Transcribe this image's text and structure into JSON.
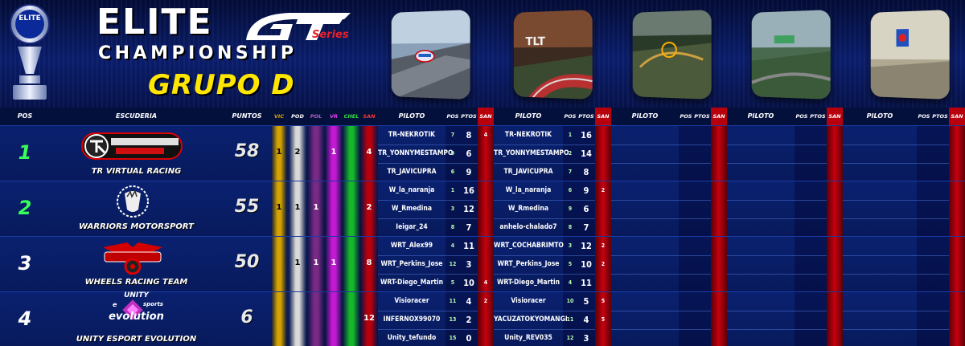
{
  "header": {
    "elite": "ELITE",
    "gt": "GT",
    "series": "Series",
    "championship": "CHAMPIONSHIP",
    "group": "GRUPO D",
    "trophy_badge": "ELITE"
  },
  "columns": {
    "pos": "POS",
    "team": "ESCUDERIA",
    "points": "PUNTOS",
    "stats": [
      "VIC",
      "POD",
      "POL",
      "VR",
      "CHEL",
      "SAN"
    ],
    "piloto": "PILOTO",
    "dpos": "POS",
    "dpts": "PTOS",
    "dsan": "SAN"
  },
  "colors": {
    "vic": "#d4a300",
    "pod": "#d9d9d9",
    "pol": "#7a2a86",
    "vr": "#c418d2",
    "chel": "#16b82a",
    "san": "#b8000c"
  },
  "teams": [
    {
      "pos": "1",
      "pos_color": "#39ff5a",
      "name": "TR VIRTUAL RACING",
      "points": "58",
      "stats": [
        "1",
        "2",
        "",
        "1",
        "",
        "4"
      ],
      "logo": "tr-virtual-racing-logo",
      "drivers": [
        {
          "r1": {
            "name": "TR-NEKROTIK",
            "pos": "7",
            "pts": "8",
            "san": "4"
          },
          "r2": {
            "name": "TR-NEKROTIK",
            "pos": "1",
            "pts": "16",
            "san": ""
          }
        },
        {
          "r1": {
            "name": "TR_YONNYMESTAMPO",
            "pos": "9",
            "pts": "6",
            "san": ""
          },
          "r2": {
            "name": "TR_YONNYMESTAMPO",
            "pos": "2",
            "pts": "14",
            "san": ""
          }
        },
        {
          "r1": {
            "name": "TR_JAVICUPRA",
            "pos": "6",
            "pts": "9",
            "san": ""
          },
          "r2": {
            "name": "TR_JAVICUPRA",
            "pos": "7",
            "pts": "8",
            "san": ""
          }
        }
      ]
    },
    {
      "pos": "2",
      "pos_color": "#39ff5a",
      "name": "WARRIORS MOTORSPORT",
      "points": "55",
      "stats": [
        "1",
        "1",
        "1",
        "",
        "",
        "2"
      ],
      "logo": "warriors-motorsport-logo",
      "drivers": [
        {
          "r1": {
            "name": "W_la_naranja",
            "pos": "1",
            "pts": "16",
            "san": ""
          },
          "r2": {
            "name": "W_la_naranja",
            "pos": "6",
            "pts": "9",
            "san": "2"
          }
        },
        {
          "r1": {
            "name": "W_Rmedina",
            "pos": "3",
            "pts": "12",
            "san": ""
          },
          "r2": {
            "name": "W_Rmedina",
            "pos": "9",
            "pts": "6",
            "san": ""
          }
        },
        {
          "r1": {
            "name": "Ieigar_24",
            "pos": "8",
            "pts": "7",
            "san": ""
          },
          "r2": {
            "name": "anhelo-chalado7",
            "pos": "8",
            "pts": "7",
            "san": ""
          }
        }
      ]
    },
    {
      "pos": "3",
      "pos_color": "#ffffff",
      "name": "WHEELS RACING TEAM",
      "points": "50",
      "stats": [
        "",
        "1",
        "1",
        "1",
        "",
        "8"
      ],
      "logo": "wheels-racing-team-logo",
      "drivers": [
        {
          "r1": {
            "name": "WRT_Alex99",
            "pos": "4",
            "pts": "11",
            "san": ""
          },
          "r2": {
            "name": "WRT_COCHABRIMTO",
            "pos": "3",
            "pts": "12",
            "san": "2"
          }
        },
        {
          "r1": {
            "name": "WRT_Perkins_Jose",
            "pos": "12",
            "pts": "3",
            "san": ""
          },
          "r2": {
            "name": "WRT_Perkins_Jose",
            "pos": "5",
            "pts": "10",
            "san": "2"
          }
        },
        {
          "r1": {
            "name": "WRT-Diego_Martin",
            "pos": "5",
            "pts": "10",
            "san": "4"
          },
          "r2": {
            "name": "WRT-Diego_Martin",
            "pos": "4",
            "pts": "11",
            "san": ""
          }
        }
      ]
    },
    {
      "pos": "4",
      "pos_color": "#ffffff",
      "name": "UNITY ESPORT EVOLUTION",
      "points": "6",
      "stats": [
        "",
        "",
        "",
        "",
        "",
        "12"
      ],
      "logo": "unity-esport-evolution-logo",
      "logo_text": {
        "top": "UNITY",
        "mid": "e",
        "mid2": "sports",
        "bottom": "evolution"
      },
      "drivers": [
        {
          "r1": {
            "name": "Visioracer",
            "pos": "11",
            "pts": "4",
            "san": "2"
          },
          "r2": {
            "name": "Visioracer",
            "pos": "10",
            "pts": "5",
            "san": "5"
          }
        },
        {
          "r1": {
            "name": "INFERNOX99070",
            "pos": "13",
            "pts": "2",
            "san": ""
          },
          "r2": {
            "name": "YACUZATOKYOMANGI",
            "pos": "11",
            "pts": "4",
            "san": "5"
          }
        },
        {
          "r1": {
            "name": "Unity_tefundo",
            "pos": "15",
            "pts": "0",
            "san": ""
          },
          "r2": {
            "name": "Unity_REV035",
            "pos": "12",
            "pts": "3",
            "san": ""
          }
        }
      ]
    }
  ]
}
